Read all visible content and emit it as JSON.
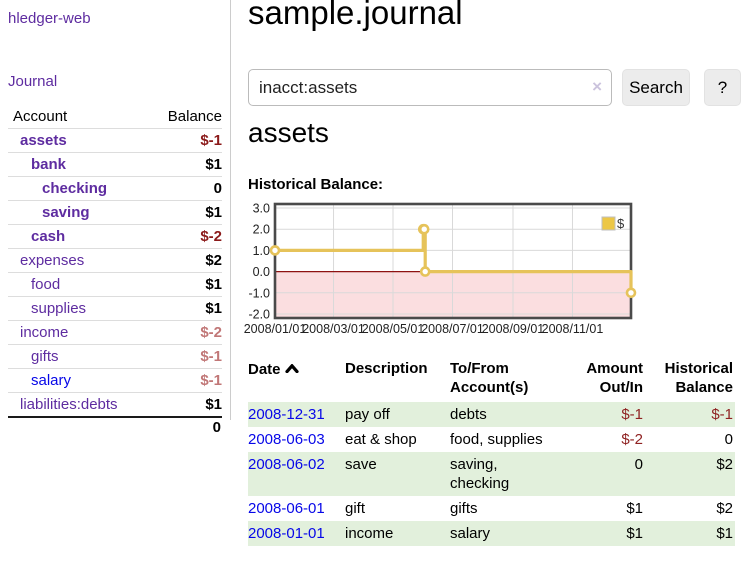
{
  "colors": {
    "link_purple": "#5e2ca0",
    "link_blue": "#0707e8",
    "negative_strong": "#8b1a1a",
    "negative_soft": "#c17777",
    "row_stripe_green": "#e2f0dc",
    "divider_gray": "#cccccc",
    "chart_gold": "#e6c35a",
    "chart_gold_fill": "#ecc747",
    "chart_negative_pink": "#fbdee0",
    "chart_zero_red": "#8e1212",
    "chart_grid": "#d9d9d9",
    "chart_border": "#4a4a4a"
  },
  "sidebar": {
    "brand": "hledger-web",
    "nav_journal": "Journal",
    "table": {
      "headers": {
        "account": "Account",
        "balance": "Balance"
      },
      "accounts": [
        {
          "name": "assets",
          "level": 1,
          "in_account": true,
          "balance": "$-1"
        },
        {
          "name": "bank",
          "level": 2,
          "in_account": true,
          "balance": "$1"
        },
        {
          "name": "checking",
          "level": 3,
          "in_account": true,
          "balance": "0"
        },
        {
          "name": "saving",
          "level": 3,
          "in_account": true,
          "balance": "$1"
        },
        {
          "name": "cash",
          "level": 2,
          "in_account": true,
          "balance": "$-2"
        },
        {
          "name": "expenses",
          "level": 1,
          "in_account": false,
          "balance": "$2"
        },
        {
          "name": "food",
          "level": 2,
          "in_account": false,
          "balance": "$1"
        },
        {
          "name": "supplies",
          "level": 2,
          "in_account": false,
          "balance": "$1"
        },
        {
          "name": "income",
          "level": 1,
          "in_account": false,
          "balance": "$-2"
        },
        {
          "name": "gifts",
          "level": 2,
          "in_account": false,
          "balance": "$-1"
        },
        {
          "name": "salary",
          "level": 2,
          "in_account": false,
          "balance": "$-1",
          "unvisited": true
        },
        {
          "name": "liabilities:debts",
          "level": 1,
          "in_account": false,
          "balance": "$1"
        }
      ],
      "total": "0"
    }
  },
  "main": {
    "title": "sample.journal",
    "search": {
      "value": "inacct:assets",
      "clear_icon": "×",
      "button_label": "Search",
      "help_label": "?"
    },
    "account_heading": "assets",
    "section_label": "Historical Balance:"
  },
  "chart_data": {
    "type": "line",
    "step": true,
    "title": "Historical Balance",
    "series": [
      {
        "name": "$",
        "points": [
          [
            "2008-01-01",
            1
          ],
          [
            "2008-06-01",
            2
          ],
          [
            "2008-06-02",
            2
          ],
          [
            "2008-06-03",
            0
          ],
          [
            "2008-12-31",
            -1
          ]
        ]
      }
    ],
    "x_range": [
      "2008-01-01",
      "2008-12-31"
    ],
    "xticks": [
      "2008/01/01",
      "2008/03/01",
      "2008/05/01",
      "2008/07/01",
      "2008/09/01",
      "2008/11/01"
    ],
    "yticks": [
      "3.0",
      "2.0",
      "1.0",
      "0.0",
      "-1.0",
      "-2.0"
    ],
    "ylim": [
      -2,
      3
    ],
    "legend": {
      "label": "$",
      "position": "top-right"
    },
    "grid": true,
    "negative_region_shaded": true
  },
  "register": {
    "sort": {
      "column": "Date",
      "direction": "ascending"
    },
    "headers": [
      {
        "line1": "Date",
        "line2": ""
      },
      {
        "line1": "Description",
        "line2": ""
      },
      {
        "line1": "To/From",
        "line2": "Account(s)"
      },
      {
        "line1": "Amount",
        "line2": "Out/In"
      },
      {
        "line1": "Historical",
        "line2": "Balance"
      }
    ],
    "rows": [
      {
        "date": "2008-12-31",
        "description": "pay off",
        "accounts": "debts",
        "amount": "$-1",
        "balance": "$-1"
      },
      {
        "date": "2008-06-03",
        "description": "eat & shop",
        "accounts": "food, supplies",
        "amount": "$-2",
        "balance": "0"
      },
      {
        "date": "2008-06-02",
        "description": "save",
        "accounts": "saving, checking",
        "amount": "0",
        "balance": "$2"
      },
      {
        "date": "2008-06-01",
        "description": "gift",
        "accounts": "gifts",
        "amount": "$1",
        "balance": "$2"
      },
      {
        "date": "2008-01-01",
        "description": "income",
        "accounts": "salary",
        "amount": "$1",
        "balance": "$1"
      }
    ]
  }
}
